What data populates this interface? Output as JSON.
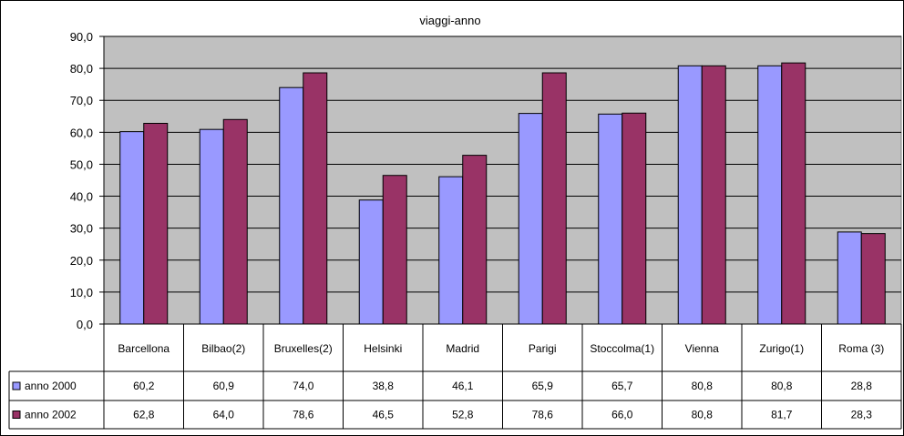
{
  "chart_data": {
    "type": "bar",
    "title": "viaggi-anno",
    "categories": [
      "Barcellona",
      "Bilbao(2)",
      "Bruxelles(2)",
      "Helsinki",
      "Madrid",
      "Parigi",
      "Stoccolma(1)",
      "Vienna",
      "Zurigo(1)",
      "Roma (3)"
    ],
    "series": [
      {
        "name": "anno 2000",
        "color": "#9999ff",
        "values": [
          60.2,
          60.9,
          74.0,
          38.8,
          46.1,
          65.9,
          65.7,
          80.8,
          80.8,
          28.8
        ],
        "labels": [
          "60,2",
          "60,9",
          "74,0",
          "38,8",
          "46,1",
          "65,9",
          "65,7",
          "80,8",
          "80,8",
          "28,8"
        ]
      },
      {
        "name": "anno 2002",
        "color": "#993366",
        "values": [
          62.8,
          64.0,
          78.6,
          46.5,
          52.8,
          78.6,
          66.0,
          80.8,
          81.7,
          28.3
        ],
        "labels": [
          "62,8",
          "64,0",
          "78,6",
          "46,5",
          "52,8",
          "78,6",
          "66,0",
          "80,8",
          "81,7",
          "28,3"
        ]
      }
    ],
    "ylim": [
      0,
      90
    ],
    "yticks": [
      "0,0",
      "10,0",
      "20,0",
      "30,0",
      "40,0",
      "50,0",
      "60,0",
      "70,0",
      "80,0",
      "90,0"
    ],
    "grid": true,
    "plot_background": "#c0c0c0",
    "data_table": true
  }
}
